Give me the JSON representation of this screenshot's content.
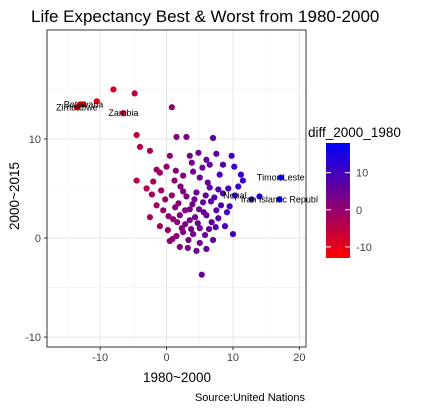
{
  "chart_data": {
    "type": "scatter",
    "title": "Life Expectancy Best & Worst from 1980-2000",
    "xlabel": "1980~2000",
    "ylabel": "2000~2015",
    "caption": "Source:United Nations",
    "xlim": [
      -18,
      21
    ],
    "ylim": [
      -11,
      21
    ],
    "x_ticks": [
      -10,
      0,
      10,
      20
    ],
    "y_ticks": [
      -10,
      0,
      10
    ],
    "x_tick_labels": [
      "-10",
      "0",
      "10",
      "20"
    ],
    "y_tick_labels": [
      "-10",
      "0",
      "10"
    ],
    "grid": true,
    "legend": {
      "title": "diff_2000_1980",
      "position": "right",
      "color_low": "#ff0000",
      "color_high": "#0000ff",
      "range": [
        -13,
        18
      ],
      "ticks": [
        10,
        0,
        -10
      ],
      "tick_labels": [
        "10",
        "0",
        "-10"
      ]
    },
    "labeled_points": [
      {
        "x": -12.5,
        "y": 13.5,
        "label": "Botswana"
      },
      {
        "x": -13.5,
        "y": 13.2,
        "label": "Zimbabwe"
      },
      {
        "x": -6.5,
        "y": 12.6,
        "label": "Zambia"
      },
      {
        "x": 17.2,
        "y": 6.1,
        "label": "Timor-Leste"
      },
      {
        "x": 10.3,
        "y": 4.3,
        "label": "Nepal"
      },
      {
        "x": 17.0,
        "y": 3.9,
        "label": "Iran Islamic Republ"
      }
    ],
    "points": [
      [
        -10.5,
        13.8
      ],
      [
        -13.0,
        13.5
      ],
      [
        -6.5,
        12.6
      ],
      [
        -4.8,
        14.6
      ],
      [
        -8.0,
        15.0
      ],
      [
        0.8,
        13.2
      ],
      [
        -4.5,
        10.4
      ],
      [
        -4.0,
        9.2
      ],
      [
        -2.5,
        8.8
      ],
      [
        1.5,
        10.2
      ],
      [
        3.0,
        10.2
      ],
      [
        7.0,
        10.1
      ],
      [
        -1.5,
        6.9
      ],
      [
        0.5,
        8.3
      ],
      [
        3.5,
        8.3
      ],
      [
        4.8,
        8.6
      ],
      [
        6.0,
        7.9
      ],
      [
        7.5,
        8.5
      ],
      [
        9.8,
        8.3
      ],
      [
        -2.0,
        5.7
      ],
      [
        -1.0,
        6.6
      ],
      [
        0.0,
        7.2
      ],
      [
        4.0,
        6.7
      ],
      [
        6.5,
        7.4
      ],
      [
        8.5,
        7.4
      ],
      [
        -4.5,
        5.8
      ],
      [
        -3.0,
        5.0
      ],
      [
        -2.2,
        4.4
      ],
      [
        1.2,
        5.8
      ],
      [
        2.5,
        6.3
      ],
      [
        5.0,
        6.1
      ],
      [
        8.0,
        6.4
      ],
      [
        10.2,
        7.2
      ],
      [
        11.2,
        6.4
      ],
      [
        -1.5,
        3.3
      ],
      [
        -2.5,
        2.1
      ],
      [
        -0.5,
        2.8
      ],
      [
        0.8,
        4.3
      ],
      [
        1.8,
        3.5
      ],
      [
        2.5,
        4.7
      ],
      [
        3.5,
        2.9
      ],
      [
        4.5,
        4.6
      ],
      [
        5.5,
        3.6
      ],
      [
        6.5,
        5.1
      ],
      [
        7.5,
        2.8
      ],
      [
        8.5,
        4.5
      ],
      [
        9.5,
        3.2
      ],
      [
        11.5,
        5.8
      ],
      [
        12.8,
        3.9
      ],
      [
        14.0,
        4.2
      ],
      [
        -1.0,
        1.2
      ],
      [
        0.2,
        0.8
      ],
      [
        1.0,
        1.9
      ],
      [
        2.0,
        2.3
      ],
      [
        2.8,
        1.4
      ],
      [
        3.5,
        1.8
      ],
      [
        4.3,
        2.1
      ],
      [
        5.0,
        1.0
      ],
      [
        6.0,
        2.3
      ],
      [
        6.8,
        1.6
      ],
      [
        7.8,
        2.0
      ],
      [
        8.8,
        1.2
      ],
      [
        0.5,
        -0.3
      ],
      [
        1.5,
        0.2
      ],
      [
        2.5,
        0.6
      ],
      [
        3.3,
        -0.2
      ],
      [
        4.0,
        0.4
      ],
      [
        5.0,
        -0.5
      ],
      [
        5.8,
        0.3
      ],
      [
        7.0,
        -0.2
      ],
      [
        2.0,
        -0.9
      ],
      [
        3.2,
        -1.0
      ],
      [
        4.5,
        -1.3
      ],
      [
        6.0,
        -1.1
      ],
      [
        10.0,
        0.4
      ],
      [
        2.8,
        2.8
      ],
      [
        3.9,
        3.4
      ],
      [
        4.9,
        2.9
      ],
      [
        5.9,
        4.3
      ],
      [
        6.7,
        3.7
      ],
      [
        1.3,
        3.1
      ],
      [
        0.3,
        2.2
      ],
      [
        -0.2,
        3.9
      ],
      [
        7.2,
        4.1
      ],
      [
        8.2,
        3.3
      ],
      [
        9.1,
        2.6
      ],
      [
        2.3,
        1.0
      ],
      [
        3.7,
        0.9
      ],
      [
        4.7,
        1.5
      ],
      [
        5.6,
        2.6
      ],
      [
        6.4,
        0.9
      ],
      [
        7.4,
        1.1
      ],
      [
        1.6,
        1.6
      ],
      [
        0.9,
        -0.1
      ],
      [
        5.3,
        -3.7
      ],
      [
        4.2,
        3.9
      ],
      [
        3.0,
        4.2
      ],
      [
        2.1,
        5.2
      ],
      [
        6.2,
        5.6
      ],
      [
        7.8,
        4.9
      ],
      [
        9.3,
        5.0
      ],
      [
        10.8,
        5.2
      ],
      [
        -0.8,
        4.8
      ],
      [
        1.4,
        6.8
      ],
      [
        3.8,
        7.6
      ],
      [
        5.4,
        7.1
      ]
    ]
  }
}
